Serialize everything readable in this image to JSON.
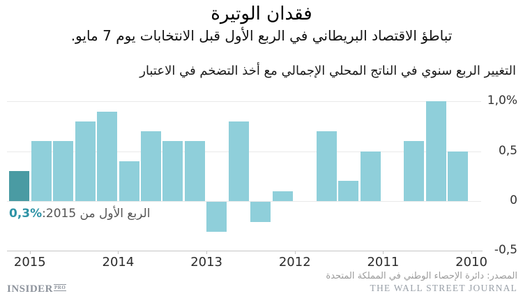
{
  "header": {
    "title": "فقدان الوتيرة",
    "subtitle": "تباطؤ الاقتصاد البريطاني في الربع الأول قبل الانتخابات يوم 7 مايو."
  },
  "chart_data": {
    "type": "bar",
    "title": "فقدان الوتيرة",
    "description": "التغيير الربع سنوي في الناتج المحلي الإجمالي مع أخذ التضخم في الاعتبار",
    "x_axis_direction": "reversed (newest 2015 at left, oldest 2010 at right)",
    "categories": [
      "2015 Q1",
      "2014 Q4",
      "2014 Q3",
      "2014 Q2",
      "2014 Q1",
      "2013 Q4",
      "2013 Q3",
      "2013 Q2",
      "2013 Q1",
      "2012 Q4",
      "2012 Q3",
      "2012 Q2",
      "2012 Q1",
      "2011 Q4",
      "2011 Q3",
      "2011 Q2",
      "2011 Q1",
      "2010 Q4",
      "2010 Q3",
      "2010 Q2",
      "2010 Q1"
    ],
    "values": [
      0.3,
      0.6,
      0.6,
      0.8,
      0.9,
      0.4,
      0.7,
      0.6,
      0.6,
      -0.3,
      0.8,
      -0.2,
      0.1,
      0.0,
      0.7,
      0.2,
      0.5,
      0.0,
      0.6,
      1.0,
      0.5
    ],
    "year_labels": [
      "2015",
      "2014",
      "2013",
      "2012",
      "2011",
      "2010"
    ],
    "y_ticks": [
      {
        "value": 1.0,
        "label": "1,0%"
      },
      {
        "value": 0.5,
        "label": "0,5"
      },
      {
        "value": 0.0,
        "label": "0"
      },
      {
        "value": -0.5,
        "label": "-0,5"
      }
    ],
    "ylim": [
      -0.5,
      1.0
    ],
    "grid": "horizontal",
    "legend": "none",
    "highlight_index": 0,
    "colors": {
      "bar": "#8fcfda",
      "highlight": "#4a9ba3"
    }
  },
  "annotation": {
    "label": "الربع الأول من 2015:",
    "value": "0,3%",
    "value_color": "#2e93a6"
  },
  "footer": {
    "source": "المصدر: دائرة الإحصاء الوطني في المملكة المتحدة",
    "wsj": "THE WALL STREET JOURNAL",
    "logo_main": "INSIDER",
    "logo_suffix": "PRO"
  }
}
